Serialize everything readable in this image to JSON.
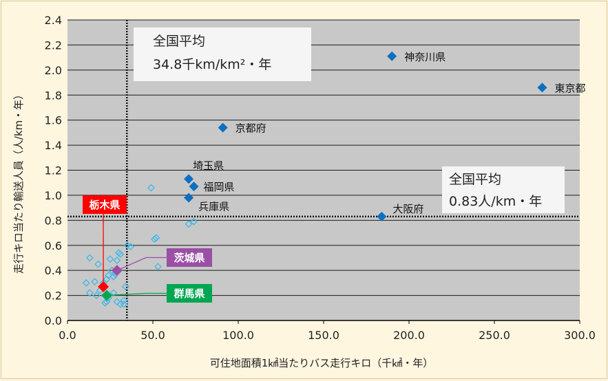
{
  "chart_data": {
    "type": "scatter",
    "title": "",
    "xlabel": "可住地面積1㎢当たりバス走行キロ（千㎢・年）",
    "ylabel": "走行キロ当たり輸送人員（人/km・年）",
    "xlim": [
      0,
      300
    ],
    "ylim": [
      0,
      2.4
    ],
    "x_ticks": [
      "0.0",
      "50.0",
      "100.0",
      "150.0",
      "200.0",
      "250.0",
      "300.0"
    ],
    "y_ticks": [
      "0.0",
      "0.2",
      "0.4",
      "0.6",
      "0.8",
      "1.0",
      "1.2",
      "1.4",
      "1.6",
      "1.8",
      "2.0",
      "2.2",
      "2.4"
    ],
    "grid": "horizontal",
    "labeled_points": [
      {
        "name": "神奈川県",
        "x": 190,
        "y": 2.11
      },
      {
        "name": "東京都",
        "x": 278,
        "y": 1.86
      },
      {
        "name": "京都府",
        "x": 91,
        "y": 1.54
      },
      {
        "name": "埼玉県",
        "x": 71,
        "y": 1.13
      },
      {
        "name": "福岡県",
        "x": 74,
        "y": 1.07
      },
      {
        "name": "兵庫県",
        "x": 71,
        "y": 0.98
      },
      {
        "name": "大阪府",
        "x": 184,
        "y": 0.83
      }
    ],
    "other_points": [
      {
        "x": 49,
        "y": 1.06
      },
      {
        "x": 52,
        "y": 0.66
      },
      {
        "x": 51,
        "y": 0.65
      },
      {
        "x": 53,
        "y": 0.43
      },
      {
        "x": 71,
        "y": 0.77
      },
      {
        "x": 74,
        "y": 0.79
      },
      {
        "x": 13,
        "y": 0.5
      },
      {
        "x": 18,
        "y": 0.45
      },
      {
        "x": 25,
        "y": 0.49
      },
      {
        "x": 30,
        "y": 0.54
      },
      {
        "x": 31,
        "y": 0.53
      },
      {
        "x": 35,
        "y": 0.6
      },
      {
        "x": 37,
        "y": 0.59
      },
      {
        "x": 29,
        "y": 0.48
      },
      {
        "x": 26,
        "y": 0.4
      },
      {
        "x": 28,
        "y": 0.37
      },
      {
        "x": 24,
        "y": 0.36
      },
      {
        "x": 23,
        "y": 0.33
      },
      {
        "x": 27,
        "y": 0.35
      },
      {
        "x": 11,
        "y": 0.3
      },
      {
        "x": 16,
        "y": 0.31
      },
      {
        "x": 19,
        "y": 0.24
      },
      {
        "x": 21,
        "y": 0.3
      },
      {
        "x": 13,
        "y": 0.22
      },
      {
        "x": 17,
        "y": 0.2
      },
      {
        "x": 24,
        "y": 0.18
      },
      {
        "x": 27,
        "y": 0.22
      },
      {
        "x": 23,
        "y": 0.15
      },
      {
        "x": 29,
        "y": 0.15
      },
      {
        "x": 31,
        "y": 0.13
      },
      {
        "x": 33,
        "y": 0.16
      },
      {
        "x": 34,
        "y": 0.27
      },
      {
        "x": 33,
        "y": 0.13
      },
      {
        "x": 22,
        "y": 0.14
      }
    ],
    "highlighted_points": [
      {
        "name": "栃木県",
        "x": 21,
        "y": 0.27,
        "color": "#ff0000"
      },
      {
        "name": "茨城県",
        "x": 29,
        "y": 0.4,
        "color": "#9b4fa5"
      },
      {
        "name": "群馬県",
        "x": 23,
        "y": 0.2,
        "color": "#00a651"
      }
    ],
    "reference_lines": [
      {
        "orientation": "vertical",
        "value": 34.8,
        "label_line1": "全国平均",
        "label_line2": "34.8千km/km²・年"
      },
      {
        "orientation": "horizontal",
        "value": 0.83,
        "label_line1": "全国平均",
        "label_line2": "0.83人/km・年"
      }
    ],
    "colors": {
      "plot_bg": "#c8c8c8",
      "labeled_marker": "#0d6fc0",
      "other_marker": "#3fb8e8",
      "grid": "#1a1a1a"
    }
  }
}
